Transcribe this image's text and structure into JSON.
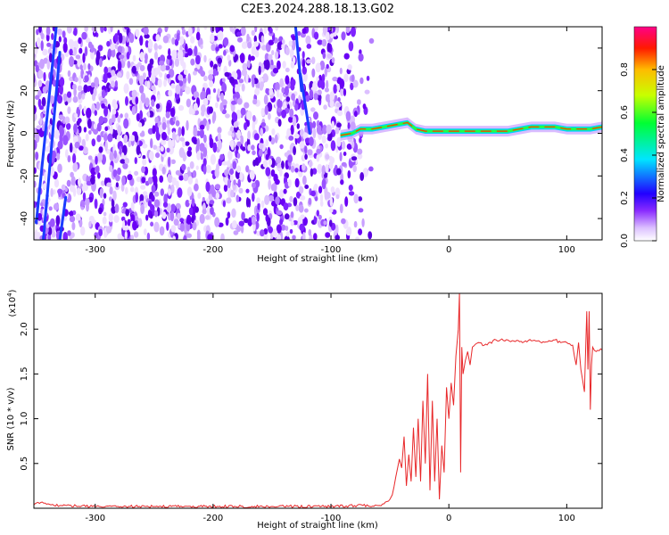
{
  "figure_title": "C2E3.2024.288.18.13.G02",
  "chart_data": [
    {
      "type": "heatmap",
      "xlabel": "Height of straight line (km)",
      "ylabel": "Frequency (Hz)",
      "xlim": [
        -352,
        130
      ],
      "ylim": [
        -50,
        50
      ],
      "xticks": [
        -300,
        -200,
        -100,
        0,
        100
      ],
      "xtick_labels": [
        "-300",
        "-200",
        "-100",
        "0",
        "100"
      ],
      "yticks": [
        -40,
        -20,
        0,
        20,
        40
      ],
      "ytick_labels": [
        "-40",
        "-20",
        "0",
        "20",
        "40"
      ],
      "colorbar": {
        "label": "Normalized spectral amplitude",
        "range": [
          0,
          1
        ],
        "ticks": [
          0.0,
          0.2,
          0.4,
          0.6,
          0.8
        ],
        "tick_labels": [
          "0.0",
          "0.2",
          "0.4",
          "0.6",
          "0.8"
        ],
        "colors": [
          "#ffffff",
          "#cc88ff",
          "#7700ff",
          "#0000ff",
          "#00ffff",
          "#00ff00",
          "#ffff00",
          "#ff0000",
          "#ff0088"
        ]
      },
      "noise_region_x": [
        -352,
        -78
      ],
      "signal_trace": {
        "x": [
          -92,
          -82,
          -75,
          -65,
          -55,
          -45,
          -35,
          -28,
          -20,
          -10,
          0,
          10,
          20,
          30,
          40,
          50,
          60,
          70,
          80,
          90,
          100,
          110,
          120,
          130
        ],
        "y": [
          -1,
          0,
          2,
          2,
          3,
          4,
          5,
          2,
          1,
          1,
          1,
          1,
          1,
          1,
          1,
          1,
          2,
          3,
          3,
          3,
          2,
          2,
          2,
          3
        ]
      }
    },
    {
      "type": "line",
      "xlabel": "Height of straight line (km)",
      "ylabel": "SNR (10 * v/v)",
      "y_multiplier": "(x10",
      "y_multiplier_exp": "4",
      "y_multiplier_close": ")",
      "xlim": [
        -352,
        130
      ],
      "ylim": [
        0,
        2.4
      ],
      "xticks": [
        -300,
        -200,
        -100,
        0,
        100
      ],
      "xtick_labels": [
        "-300",
        "-200",
        "-100",
        "0",
        "100"
      ],
      "yticks": [
        0.5,
        1.0,
        1.5,
        2.0
      ],
      "ytick_labels": [
        "0.5",
        "1.0",
        "1.5",
        "2.0"
      ],
      "series": [
        {
          "color": "#e8282a",
          "x": [
            -352,
            -345,
            -340,
            -330,
            -300,
            -250,
            -200,
            -150,
            -100,
            -80,
            -60,
            -55,
            -50,
            -48,
            -45,
            -42,
            -40,
            -38,
            -36,
            -34,
            -32,
            -30,
            -28,
            -26,
            -24,
            -22,
            -20,
            -18,
            -16,
            -14,
            -12,
            -10,
            -8,
            -6,
            -4,
            -2,
            0,
            2,
            4,
            6,
            8,
            9,
            10,
            11,
            12,
            14,
            16,
            18,
            20,
            25,
            30,
            40,
            50,
            60,
            70,
            80,
            90,
            95,
            100,
            105,
            108,
            110,
            112,
            115,
            117,
            118,
            119,
            120,
            121,
            122,
            125,
            130
          ],
          "y": [
            0.04,
            0.07,
            0.05,
            0.03,
            0.02,
            0.02,
            0.02,
            0.02,
            0.02,
            0.03,
            0.03,
            0.05,
            0.1,
            0.15,
            0.35,
            0.55,
            0.45,
            0.8,
            0.25,
            0.6,
            0.3,
            0.9,
            0.35,
            1.0,
            0.3,
            1.2,
            0.5,
            1.5,
            0.2,
            1.2,
            0.3,
            1.0,
            0.1,
            0.7,
            0.4,
            1.35,
            1.0,
            1.4,
            1.15,
            1.7,
            2.0,
            2.4,
            0.4,
            1.8,
            1.5,
            1.65,
            1.75,
            1.6,
            1.8,
            1.85,
            1.82,
            1.88,
            1.88,
            1.86,
            1.87,
            1.86,
            1.88,
            1.85,
            1.85,
            1.82,
            1.6,
            1.85,
            1.55,
            1.3,
            2.2,
            1.55,
            2.2,
            1.1,
            1.6,
            1.8,
            1.75,
            1.77
          ]
        }
      ]
    }
  ]
}
